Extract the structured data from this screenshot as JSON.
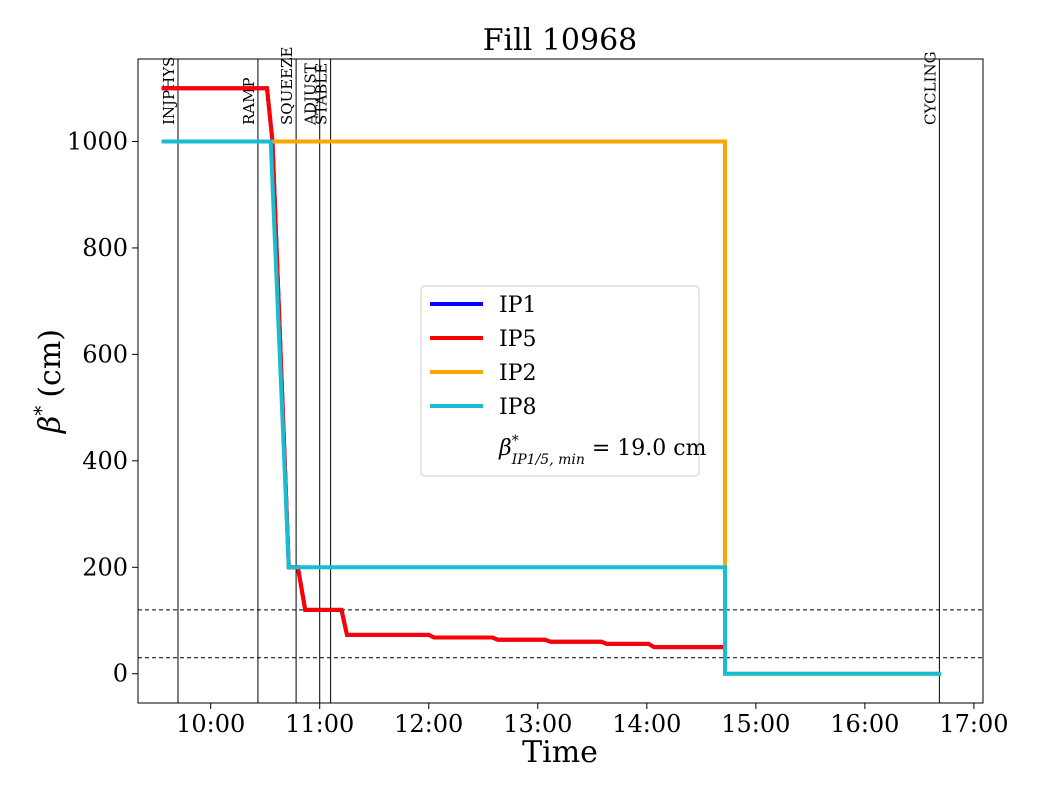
{
  "chart_data": {
    "type": "line",
    "title": "Fill 10968",
    "xlabel": "Time",
    "ylabel_symbol": "β",
    "ylabel_sup": "*",
    "ylabel_unit": "(cm)",
    "xlim": [
      "09:20",
      "17:05"
    ],
    "ylim": [
      -55,
      1155
    ],
    "xticks": [
      "10:00",
      "11:00",
      "12:00",
      "13:00",
      "14:00",
      "15:00",
      "16:00",
      "17:00"
    ],
    "yticks": [
      0,
      200,
      400,
      600,
      800,
      1000
    ],
    "grid": false,
    "legend_placement": "center",
    "series": [
      {
        "name": "IP1",
        "color": "#0000ff",
        "points": [
          [
            "09:33",
            1100
          ],
          [
            "10:31",
            1100
          ],
          [
            "10:34",
            1000
          ],
          [
            "10:43",
            200
          ],
          [
            "10:48",
            200
          ],
          [
            "10:52",
            120
          ],
          [
            "11:12",
            120
          ],
          [
            "11:15",
            73
          ],
          [
            "12:00",
            73
          ],
          [
            "12:03",
            68
          ],
          [
            "12:35",
            68
          ],
          [
            "12:38",
            64
          ],
          [
            "13:04",
            64
          ],
          [
            "13:07",
            60
          ],
          [
            "13:35",
            60
          ],
          [
            "13:38",
            56
          ],
          [
            "14:01",
            56
          ],
          [
            "14:04",
            50
          ],
          [
            "14:43",
            50
          ]
        ]
      },
      {
        "name": "IP5",
        "color": "#ff0000",
        "points": [
          [
            "09:33",
            1100
          ],
          [
            "10:31",
            1100
          ],
          [
            "10:34",
            1000
          ],
          [
            "10:43",
            200
          ],
          [
            "10:48",
            200
          ],
          [
            "10:52",
            120
          ],
          [
            "11:12",
            120
          ],
          [
            "11:15",
            73
          ],
          [
            "12:00",
            73
          ],
          [
            "12:03",
            68
          ],
          [
            "12:35",
            68
          ],
          [
            "12:38",
            64
          ],
          [
            "13:04",
            64
          ],
          [
            "13:07",
            60
          ],
          [
            "13:35",
            60
          ],
          [
            "13:38",
            56
          ],
          [
            "14:01",
            56
          ],
          [
            "14:04",
            50
          ],
          [
            "14:43",
            50
          ]
        ]
      },
      {
        "name": "IP2",
        "color": "#ffa500",
        "points": [
          [
            "10:33",
            1000
          ],
          [
            "14:43",
            1000
          ],
          [
            "14:43",
            0
          ],
          [
            "16:42",
            0
          ]
        ]
      },
      {
        "name": "IP8",
        "color": "#17becf",
        "points": [
          [
            "09:33",
            1000
          ],
          [
            "10:33",
            1000
          ],
          [
            "10:43",
            200
          ],
          [
            "14:43",
            200
          ],
          [
            "14:43",
            0
          ],
          [
            "16:42",
            0
          ]
        ]
      }
    ],
    "legend_note": {
      "beta": "β",
      "sup": "*",
      "sub": "IP1/5, min",
      "text": " = 19.0 cm"
    },
    "modes": [
      {
        "label": "INJPHYS",
        "time": "09:42"
      },
      {
        "label": "RAMP",
        "time": "10:26"
      },
      {
        "label": "SQUEEZE",
        "time": "10:47"
      },
      {
        "label": "ADJUST",
        "time": "11:00"
      },
      {
        "label": "STABLE",
        "time": "11:06"
      },
      {
        "label": "CYCLING",
        "time": "16:41"
      }
    ],
    "hlines": [
      30,
      120
    ]
  }
}
